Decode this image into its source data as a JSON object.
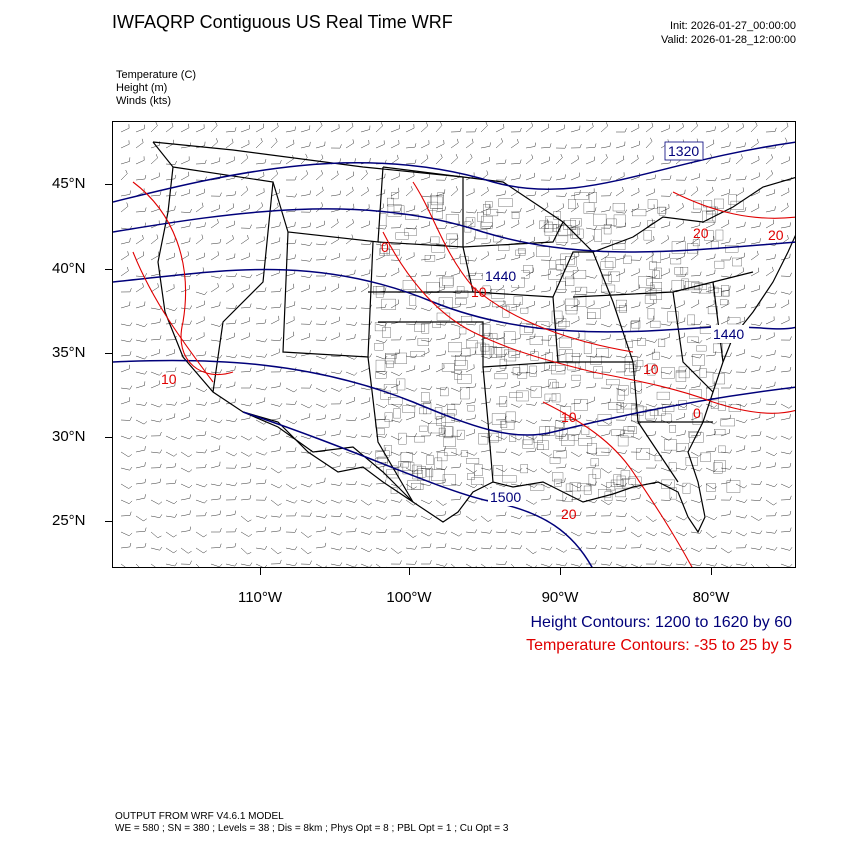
{
  "header": {
    "title": "IWFAQRP Contiguous US Real Time WRF",
    "init": "Init: 2026-01-27_00:00:00",
    "valid": "Valid: 2026-01-28_12:00:00"
  },
  "fields": {
    "temperature": "Temperature   (C)",
    "height": "Height   (m)",
    "winds": "Winds   (kts)"
  },
  "axes": {
    "lat_labels": [
      "45°N",
      "40°N",
      "35°N",
      "30°N",
      "25°N"
    ],
    "lon_labels": [
      "110°W",
      "100°W",
      "90°W",
      "80°W"
    ]
  },
  "contour_labels": {
    "height": [
      "1320",
      "1440",
      "1440",
      "1500"
    ],
    "temperature": [
      "0",
      "10",
      "20",
      "20",
      "10",
      "0",
      "10",
      "10",
      "20"
    ]
  },
  "notes": {
    "height_contours": "Height Contours: 1200 to 1620 by 60",
    "temperature_contours": "Temperature Contours: -35 to 25 by 5"
  },
  "colors": {
    "height": "#00007a",
    "temperature": "#e00000",
    "borders": "#000000",
    "barbs": "#333333"
  },
  "footer": {
    "line1": "OUTPUT FROM WRF V4.6.1 MODEL",
    "line2": "WE = 580 ; SN = 380 ; Levels = 38 ; Dis = 8km ; Phys Opt = 8 ; PBL Opt = 1 ; Cu Opt = 3"
  }
}
